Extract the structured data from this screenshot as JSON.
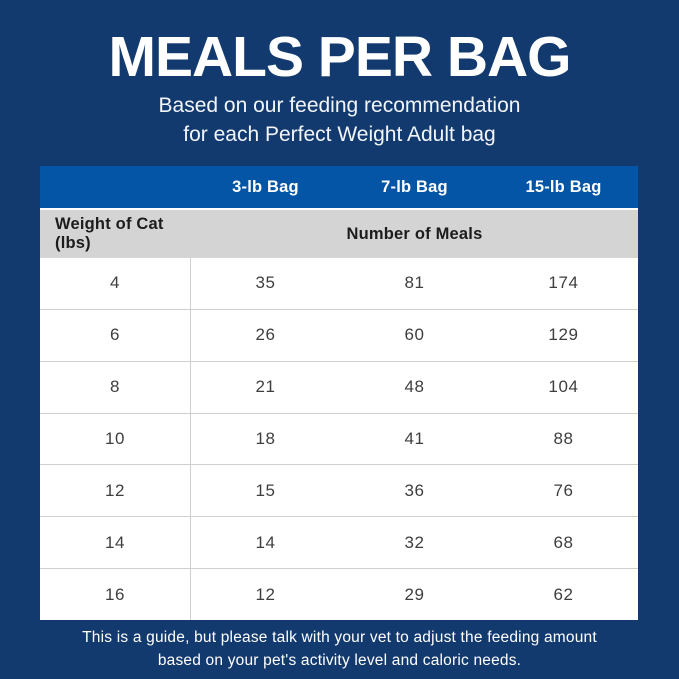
{
  "header": {
    "title": "MEALS PER BAG",
    "subtitle_line1": "Based on our feeding recommendation",
    "subtitle_line2": "for each Perfect Weight Adult bag"
  },
  "table": {
    "bag_columns": {
      "col3lb": "3-lb Bag",
      "col7lb": "7-lb Bag",
      "col15lb": "15-lb Bag"
    },
    "subheader": {
      "weight_label": "Weight of Cat (lbs)",
      "meals_label": "Number of Meals"
    },
    "rows": [
      {
        "weight": "4",
        "bag3": "35",
        "bag7": "81",
        "bag15": "174"
      },
      {
        "weight": "6",
        "bag3": "26",
        "bag7": "60",
        "bag15": "129"
      },
      {
        "weight": "8",
        "bag3": "21",
        "bag7": "48",
        "bag15": "104"
      },
      {
        "weight": "10",
        "bag3": "18",
        "bag7": "41",
        "bag15": "88"
      },
      {
        "weight": "12",
        "bag3": "15",
        "bag7": "36",
        "bag15": "76"
      },
      {
        "weight": "14",
        "bag3": "14",
        "bag7": "32",
        "bag15": "68"
      },
      {
        "weight": "16",
        "bag3": "12",
        "bag7": "29",
        "bag15": "62"
      }
    ]
  },
  "footer": {
    "line1": "This is a guide, but please talk with your vet to adjust the feeding amount",
    "line2": "based on your pet's activity level and caloric needs."
  },
  "colors": {
    "background_navy": "#133a6f",
    "header_blue": "#0455a5",
    "subheader_gray": "#d4d4d4",
    "row_white": "#ffffff",
    "divider_gray": "#cfcfcf",
    "body_text_dark": "#3e3e3e",
    "text_white": "#ffffff"
  },
  "chart_data": {
    "type": "table",
    "title": "MEALS PER BAG",
    "subtitle": "Based on our feeding recommendation for each Perfect Weight Adult bag",
    "columns": [
      "Weight of Cat (lbs)",
      "3-lb Bag",
      "7-lb Bag",
      "15-lb Bag"
    ],
    "values_group_label": "Number of Meals",
    "rows": [
      [
        4,
        35,
        81,
        174
      ],
      [
        6,
        26,
        60,
        129
      ],
      [
        8,
        21,
        48,
        104
      ],
      [
        10,
        18,
        41,
        88
      ],
      [
        12,
        15,
        36,
        76
      ],
      [
        14,
        14,
        32,
        68
      ],
      [
        16,
        12,
        29,
        62
      ]
    ],
    "footnote": "This is a guide, but please talk with your vet to adjust the feeding amount based on your pet's activity level and caloric needs.",
    "legend_position": "none",
    "grid": "horizontal-row-dividers"
  }
}
